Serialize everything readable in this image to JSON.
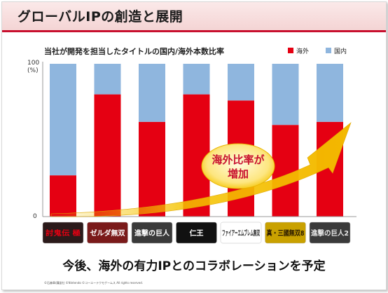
{
  "header": {
    "title": "グローバルIPの創造と展開"
  },
  "chart_data": {
    "type": "bar",
    "stacked": true,
    "title": "当社が開発を担当したタイトルの国内/海外本数比率",
    "ylabel": "(%)",
    "ylim": [
      0,
      100
    ],
    "yticks": [
      "100",
      "0"
    ],
    "grid": false,
    "legend": "top-right",
    "categories": [
      "討鬼伝 極",
      "ゼルダ無双",
      "進撃の巨人",
      "仁王",
      "ファイアーエムブレム無双",
      "真・三國無双8",
      "進撃の巨人2"
    ],
    "series": [
      {
        "name": "海外",
        "color": "#e50012",
        "values": [
          27,
          80,
          62,
          80,
          76,
          60,
          62
        ]
      },
      {
        "name": "国内",
        "color": "#8fb6de",
        "values": [
          73,
          20,
          38,
          20,
          24,
          40,
          38
        ]
      }
    ],
    "annotation": {
      "lines": [
        "海外比率が",
        "増加"
      ],
      "arrow_color": "#f5c400",
      "text_color": "#c8102e"
    }
  },
  "footnote": "©石森章/講談社 ©Nintendo ©コーエーテクモゲームス All rights reserved.",
  "bottom_message": "今後、海外の有力IPとのコラボレーションを予定"
}
